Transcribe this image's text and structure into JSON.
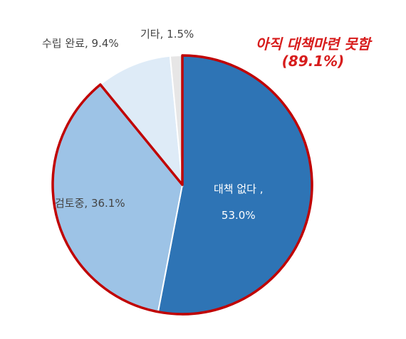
{
  "chart_data": {
    "type": "pie",
    "slices": [
      {
        "label": "대책 없다 ,",
        "value": 53.0,
        "value_label": "53.0%",
        "color": "#2e74b5"
      },
      {
        "label": "검토중,",
        "value": 36.1,
        "value_label": "36.1%",
        "color": "#9dc3e6"
      },
      {
        "label": "수립 완료,",
        "value": 9.4,
        "value_label": "9.4%",
        "color": "#deebf7"
      },
      {
        "label": "기타,",
        "value": 1.5,
        "value_label": "1.5%",
        "color": "#e7e6e6"
      }
    ],
    "annotation": {
      "line1": "아직 대책마련 못함",
      "line2": "(89.1%)",
      "color": "#d71c1c"
    },
    "highlight_outline_color": "#c00000"
  }
}
